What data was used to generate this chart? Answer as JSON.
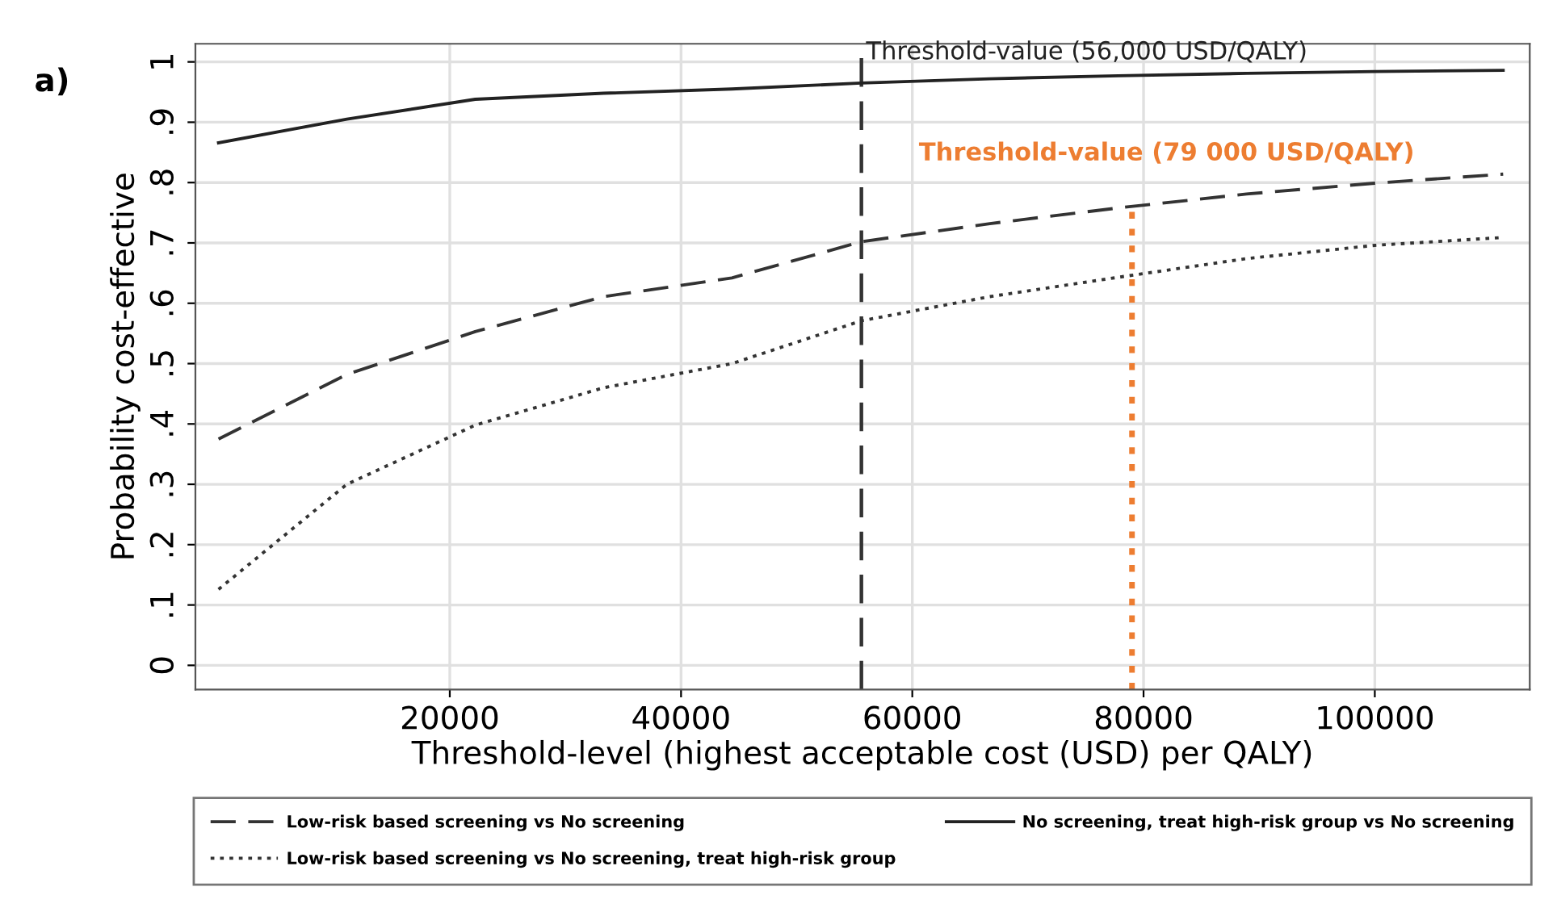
{
  "chart_data": {
    "type": "line",
    "title": "a)",
    "xlabel": "Threshold-level (highest acceptable cost (USD) per QALY)",
    "ylabel": "Probability cost-effective",
    "x": [
      0,
      11100,
      22200,
      33300,
      44400,
      55600,
      66700,
      77800,
      88900,
      100000,
      111100
    ],
    "series": [
      {
        "name": "Low-risk based screening vs No screening",
        "color": "#333333",
        "line_style": "dashed",
        "values": [
          0.375,
          0.482,
          0.553,
          0.611,
          0.642,
          0.702,
          0.732,
          0.758,
          0.781,
          0.799,
          0.814
        ]
      },
      {
        "name": "Low-risk based screening vs No screening, treat high-risk group",
        "color": "#333333",
        "line_style": "dotted",
        "values": [
          0.126,
          0.3,
          0.398,
          0.46,
          0.5,
          0.571,
          0.611,
          0.643,
          0.674,
          0.696,
          0.709
        ]
      },
      {
        "name": "No screening, treat high-risk group vs No screening",
        "color": "#222222",
        "line_style": "solid",
        "values": [
          0.866,
          0.905,
          0.938,
          0.948,
          0.955,
          0.965,
          0.972,
          0.977,
          0.981,
          0.984,
          0.986
        ]
      }
    ],
    "xlim": [
      -2000,
      113400
    ],
    "xticks": [
      20000,
      40000,
      60000,
      80000,
      100000
    ],
    "ylim": [
      -0.04,
      1.03
    ],
    "yticks": [
      {
        "value": 0,
        "label": "0"
      },
      {
        "value": 0.1,
        "label": ".1"
      },
      {
        "value": 0.2,
        "label": ".2"
      },
      {
        "value": 0.3,
        "label": ".3"
      },
      {
        "value": 0.4,
        "label": ".4"
      },
      {
        "value": 0.5,
        "label": ".5"
      },
      {
        "value": 0.6,
        "label": ".6"
      },
      {
        "value": 0.7,
        "label": ".7"
      },
      {
        "value": 0.8,
        "label": ".8"
      },
      {
        "value": 0.9,
        "label": ".9"
      },
      {
        "value": 1,
        "label": "1"
      }
    ],
    "ref_lines": [
      {
        "axis": "x",
        "value": 55600,
        "label": "Threshold-value (56,000 USD/QALY)",
        "color": "#333333",
        "line_style": "dashed"
      },
      {
        "axis": "x",
        "value": 79000,
        "label": "Threshold-value (79 000 USD/QALY)",
        "color": "#ed7d31",
        "line_style": "dotted"
      }
    ],
    "grid": true,
    "legend": "bottom",
    "marker": "none"
  }
}
